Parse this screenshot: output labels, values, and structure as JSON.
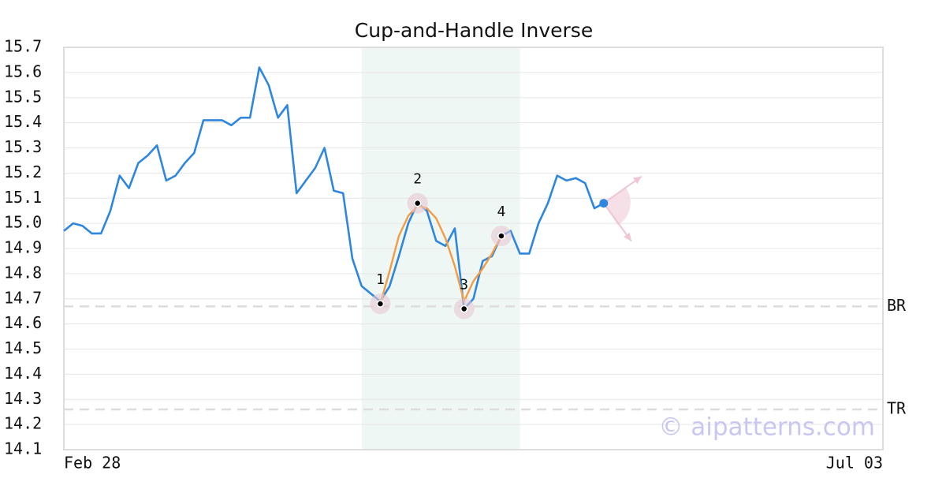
{
  "chart_data": {
    "type": "line",
    "title": "Cup-and-Handle Inverse",
    "categories": [
      "Feb 28",
      null,
      null,
      null,
      null,
      null,
      null,
      null,
      null,
      null,
      null,
      null,
      null,
      null,
      null,
      null,
      null,
      null,
      null,
      null,
      null,
      null,
      null,
      null,
      null,
      null,
      null,
      null,
      null,
      null,
      null,
      null,
      null,
      null,
      null,
      null,
      null,
      null,
      null,
      null,
      null,
      null,
      null,
      null,
      null,
      null,
      null,
      null,
      null,
      null,
      null,
      null,
      null,
      null,
      null,
      null,
      null,
      null,
      null,
      null,
      null,
      null,
      null,
      null,
      null,
      null,
      null,
      null,
      null,
      null,
      null,
      null,
      null,
      null,
      null,
      null,
      null,
      null,
      null,
      null,
      null,
      null,
      null,
      null,
      null,
      null,
      null,
      null,
      "Jul 03"
    ],
    "xticks": [
      0,
      88
    ],
    "series": [
      {
        "color": "#2e86de",
        "values": [
          14.97,
          15.0,
          14.99,
          14.96,
          14.96,
          15.05,
          15.19,
          15.14,
          15.24,
          15.27,
          15.31,
          15.17,
          15.19,
          15.24,
          15.28,
          15.41,
          15.41,
          15.41,
          15.39,
          15.42,
          15.42,
          15.62,
          15.55,
          15.42,
          15.47,
          15.12,
          15.17,
          15.22,
          15.3,
          15.13,
          15.12,
          14.86,
          14.75,
          14.72,
          14.69,
          14.75,
          14.87,
          15.0,
          15.08,
          15.05,
          14.93,
          14.91,
          14.98,
          14.66,
          14.7,
          14.85,
          14.87,
          14.95,
          14.97,
          14.88,
          14.88,
          15.0,
          15.08,
          15.19,
          15.17,
          15.18,
          15.16,
          15.06,
          15.08,
          null,
          null,
          null,
          null,
          null,
          null,
          null,
          null,
          null,
          null,
          null,
          null,
          null,
          null,
          null,
          null,
          null,
          null,
          null,
          null,
          null,
          null,
          null,
          null,
          null,
          null,
          null,
          null,
          null,
          null
        ]
      },
      {
        "color": "#f39c44",
        "values": [
          null,
          null,
          null,
          null,
          null,
          null,
          null,
          null,
          null,
          null,
          null,
          null,
          null,
          null,
          null,
          null,
          null,
          null,
          null,
          null,
          null,
          null,
          null,
          null,
          null,
          null,
          null,
          null,
          null,
          null,
          null,
          null,
          null,
          null,
          14.68,
          14.81,
          14.95,
          15.03,
          15.07,
          15.06,
          15.02,
          14.94,
          14.83,
          14.69,
          14.77,
          14.82,
          14.88,
          14.95,
          null,
          null,
          null,
          null,
          null,
          null,
          null,
          null,
          null,
          null,
          null,
          null,
          null,
          null,
          null,
          null,
          null,
          null,
          null,
          null,
          null,
          null,
          null,
          null,
          null,
          null,
          null,
          null,
          null,
          null,
          null,
          null,
          null,
          null,
          null,
          null,
          null,
          null,
          null,
          null,
          null
        ]
      }
    ],
    "points": [
      {
        "label": "1",
        "index": 34,
        "value": 14.68
      },
      {
        "label": "2",
        "index": 38,
        "value": 15.08
      },
      {
        "label": "3",
        "index": 43,
        "value": 14.66
      },
      {
        "label": "4",
        "index": 47,
        "value": 14.95
      }
    ],
    "highlight_range": [
      32,
      49
    ],
    "levels": [
      {
        "label": "BR",
        "value": 14.67
      },
      {
        "label": "TR",
        "value": 14.26
      }
    ],
    "ylim": [
      14.1,
      15.7
    ],
    "yticks": [
      14.1,
      14.2,
      14.3,
      14.4,
      14.5,
      14.6,
      14.7,
      14.8,
      14.9,
      {
        "value": 15,
        "label": "15.0"
      },
      15.1,
      15.2,
      15.3,
      15.4,
      15.5,
      15.6,
      15.7
    ],
    "grid": true,
    "watermark": "© aipatterns.com"
  }
}
